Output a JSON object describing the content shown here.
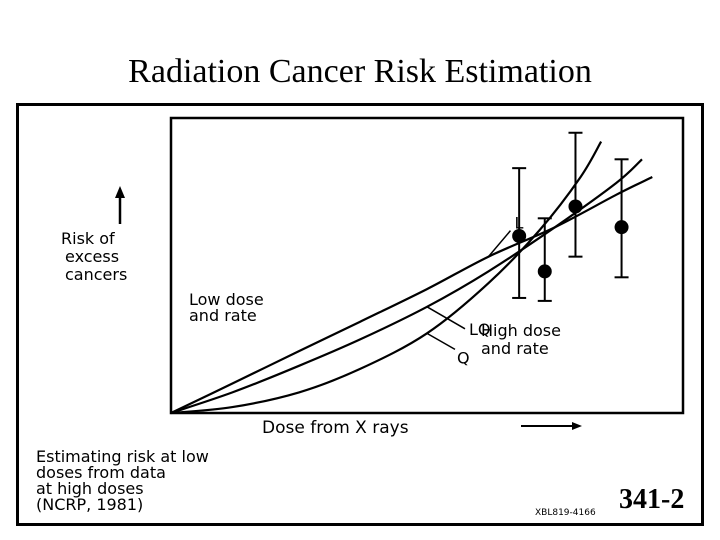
{
  "slide": {
    "title": "Radiation Cancer Risk Estimation",
    "number": "341-2"
  },
  "figure": {
    "caption_lines": [
      "Estimating risk at low",
      "doses from data",
      "at high doses",
      "(NCRP, 1981)"
    ],
    "stamp": "XBL819-4166",
    "region_labels": {
      "low": [
        "Low dose",
        "and rate"
      ],
      "high": [
        "High dose",
        "and rate"
      ]
    }
  },
  "chart_data": {
    "type": "line",
    "title": "",
    "xlabel": "Dose from X rays",
    "ylabel_lines": [
      "Risk of",
      "excess",
      "cancers"
    ],
    "axis_arrows": true,
    "tick_labels": false,
    "xlim": [
      0,
      1
    ],
    "ylim": [
      0,
      1
    ],
    "grid": false,
    "series": [
      {
        "name": "L",
        "model": "linear",
        "x": [
          0,
          0.12,
          0.25,
          0.37,
          0.5,
          0.62,
          0.75,
          0.87,
          0.94
        ],
        "y": [
          0,
          0.1,
          0.21,
          0.31,
          0.42,
          0.53,
          0.63,
          0.74,
          0.8
        ]
      },
      {
        "name": "LQ",
        "model": "linear-quadratic",
        "x": [
          0,
          0.12,
          0.25,
          0.37,
          0.5,
          0.62,
          0.75,
          0.87,
          0.92
        ],
        "y": [
          0,
          0.07,
          0.16,
          0.25,
          0.36,
          0.48,
          0.63,
          0.78,
          0.86
        ]
      },
      {
        "name": "Q",
        "model": "quadratic",
        "x": [
          0,
          0.12,
          0.25,
          0.37,
          0.5,
          0.62,
          0.72,
          0.8,
          0.84
        ],
        "y": [
          0,
          0.02,
          0.07,
          0.15,
          0.27,
          0.44,
          0.62,
          0.8,
          0.92
        ]
      }
    ],
    "data_points": [
      {
        "x": 0.68,
        "y": 0.6,
        "err_low": 0.39,
        "err_high": 0.83
      },
      {
        "x": 0.73,
        "y": 0.48,
        "err_low": 0.38,
        "err_high": 0.66
      },
      {
        "x": 0.79,
        "y": 0.7,
        "err_low": 0.53,
        "err_high": 0.95
      },
      {
        "x": 0.88,
        "y": 0.63,
        "err_low": 0.46,
        "err_high": 0.86
      }
    ]
  }
}
